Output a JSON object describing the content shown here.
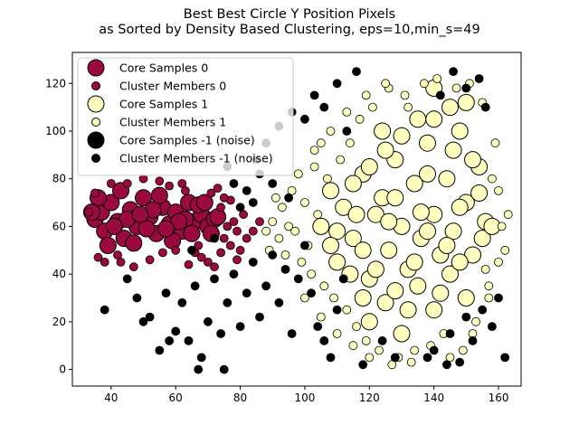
{
  "title_line1": "Best Best Circle Y Position Pixels",
  "title_line2": "as Sorted by Density Based Clustering, eps=10,min_s=49",
  "chart_data": {
    "type": "scatter",
    "title": "Best Best Circle Y Position Pixels as Sorted by Density Based Clustering, eps=10,min_s=49",
    "xlabel": "",
    "ylabel": "",
    "xlim": [
      28,
      167
    ],
    "ylim": [
      -7,
      133
    ],
    "xticks": [
      40,
      60,
      80,
      100,
      120,
      140,
      160
    ],
    "yticks": [
      0,
      20,
      40,
      60,
      80,
      100,
      120
    ],
    "grid": false,
    "legend_position": "top-left",
    "legend": [
      {
        "label": "Core Samples 0",
        "color": "#9b0a3f",
        "marker": "large-circle"
      },
      {
        "label": "Cluster Members 0",
        "color": "#9b0a3f",
        "marker": "small-circle"
      },
      {
        "label": "Core Samples 1",
        "color": "#ffffc0",
        "marker": "large-circle"
      },
      {
        "label": "Cluster Members 1",
        "color": "#ffffc0",
        "marker": "small-circle"
      },
      {
        "label": "Core Samples -1 (noise)",
        "color": "#000000",
        "marker": "large-circle"
      },
      {
        "label": "Cluster Members -1 (noise)",
        "color": "#000000",
        "marker": "small-circle"
      }
    ],
    "series": [
      {
        "name": "Core Samples 0",
        "color": "#9b0a3f",
        "size": "large",
        "points": [
          [
            35,
            63
          ],
          [
            37,
            66
          ],
          [
            38,
            58
          ],
          [
            40,
            70
          ],
          [
            42,
            62
          ],
          [
            44,
            55
          ],
          [
            46,
            67
          ],
          [
            48,
            60
          ],
          [
            50,
            72
          ],
          [
            52,
            64
          ],
          [
            54,
            57
          ],
          [
            56,
            68
          ],
          [
            58,
            61
          ],
          [
            60,
            66
          ],
          [
            62,
            58
          ],
          [
            64,
            70
          ],
          [
            66,
            62
          ],
          [
            68,
            65
          ],
          [
            70,
            60
          ],
          [
            72,
            63
          ],
          [
            36,
            72
          ],
          [
            39,
            52
          ],
          [
            43,
            75
          ],
          [
            47,
            53
          ],
          [
            51,
            59
          ],
          [
            55,
            73
          ],
          [
            59,
            54
          ],
          [
            63,
            63
          ],
          [
            67,
            69
          ],
          [
            71,
            57
          ],
          [
            45,
            63
          ],
          [
            53,
            67
          ],
          [
            61,
            62
          ],
          [
            57,
            59
          ],
          [
            49,
            65
          ],
          [
            41,
            60
          ],
          [
            65,
            57
          ],
          [
            69,
            70
          ],
          [
            73,
            64
          ],
          [
            34,
            66
          ]
        ]
      },
      {
        "name": "Cluster Members 0",
        "color": "#9b0a3f",
        "size": "small",
        "points": [
          [
            33,
            66
          ],
          [
            35,
            74
          ],
          [
            36,
            47
          ],
          [
            38,
            45
          ],
          [
            42,
            48
          ],
          [
            45,
            78
          ],
          [
            50,
            80
          ],
          [
            55,
            79
          ],
          [
            62,
            78
          ],
          [
            66,
            49
          ],
          [
            70,
            45
          ],
          [
            72,
            43
          ],
          [
            74,
            68
          ],
          [
            75,
            55
          ],
          [
            76,
            60
          ],
          [
            77,
            52
          ],
          [
            78,
            62
          ],
          [
            79,
            58
          ],
          [
            80,
            50
          ],
          [
            81,
            65
          ],
          [
            60,
            50
          ],
          [
            58,
            77
          ],
          [
            52,
            46
          ],
          [
            47,
            43
          ],
          [
            40,
            78
          ],
          [
            64,
            44
          ],
          [
            68,
            47
          ],
          [
            74,
            49
          ],
          [
            77,
            71
          ],
          [
            82,
            55
          ],
          [
            84,
            58
          ],
          [
            86,
            62
          ],
          [
            79,
            46
          ],
          [
            73,
            76
          ],
          [
            43,
            45
          ],
          [
            56,
            49
          ],
          [
            63,
            75
          ],
          [
            67,
            52
          ],
          [
            71,
            74
          ],
          [
            75,
            72
          ]
        ]
      },
      {
        "name": "Core Samples 1",
        "color": "#ffffc0",
        "size": "large",
        "points": [
          [
            105,
            60
          ],
          [
            108,
            75
          ],
          [
            110,
            45
          ],
          [
            112,
            68
          ],
          [
            115,
            55
          ],
          [
            118,
            82
          ],
          [
            120,
            38
          ],
          [
            122,
            65
          ],
          [
            124,
            72
          ],
          [
            126,
            50
          ],
          [
            128,
            88
          ],
          [
            130,
            60
          ],
          [
            132,
            42
          ],
          [
            134,
            78
          ],
          [
            136,
            55
          ],
          [
            138,
            95
          ],
          [
            140,
            65
          ],
          [
            142,
            32
          ],
          [
            144,
            80
          ],
          [
            146,
            58
          ],
          [
            148,
            100
          ],
          [
            150,
            70
          ],
          [
            152,
            48
          ],
          [
            154,
            85
          ],
          [
            156,
            62
          ],
          [
            120,
            20
          ],
          [
            125,
            28
          ],
          [
            130,
            15
          ],
          [
            135,
            35
          ],
          [
            140,
            25
          ],
          [
            145,
            40
          ],
          [
            150,
            30
          ],
          [
            155,
            55
          ],
          [
            145,
            110
          ],
          [
            140,
            118
          ],
          [
            135,
            105
          ],
          [
            130,
            98
          ],
          [
            125,
            92
          ],
          [
            120,
            85
          ],
          [
            115,
            78
          ],
          [
            110,
            58
          ],
          [
            118,
            50
          ],
          [
            128,
            72
          ],
          [
            138,
            82
          ],
          [
            148,
            68
          ],
          [
            132,
            25
          ],
          [
            142,
            48
          ],
          [
            152,
            88
          ],
          [
            122,
            42
          ],
          [
            136,
            66
          ],
          [
            146,
            92
          ],
          [
            126,
            62
          ],
          [
            116,
            65
          ],
          [
            134,
            45
          ],
          [
            144,
            52
          ],
          [
            124,
            100
          ],
          [
            154,
            74
          ],
          [
            108,
            52
          ],
          [
            114,
            40
          ],
          [
            140,
            105
          ],
          [
            150,
            112
          ],
          [
            128,
            33
          ],
          [
            118,
            30
          ],
          [
            138,
            58
          ],
          [
            148,
            45
          ],
          [
            158,
            60
          ]
        ]
      },
      {
        "name": "Cluster Members 1",
        "color": "#ffffc0",
        "size": "small",
        "points": [
          [
            95,
            60
          ],
          [
            96,
            75
          ],
          [
            98,
            82
          ],
          [
            99,
            45
          ],
          [
            100,
            70
          ],
          [
            101,
            52
          ],
          [
            102,
            40
          ],
          [
            103,
            85
          ],
          [
            104,
            65
          ],
          [
            106,
            35
          ],
          [
            107,
            80
          ],
          [
            109,
            30
          ],
          [
            111,
            88
          ],
          [
            113,
            25
          ],
          [
            114,
            95
          ],
          [
            116,
            18
          ],
          [
            117,
            105
          ],
          [
            119,
            12
          ],
          [
            121,
            110
          ],
          [
            123,
            8
          ],
          [
            126,
            118
          ],
          [
            129,
            5
          ],
          [
            131,
            115
          ],
          [
            133,
            3
          ],
          [
            137,
            120
          ],
          [
            139,
            10
          ],
          [
            141,
            122
          ],
          [
            143,
            15
          ],
          [
            147,
            118
          ],
          [
            149,
            8
          ],
          [
            151,
            120
          ],
          [
            153,
            20
          ],
          [
            155,
            112
          ],
          [
            157,
            35
          ],
          [
            159,
            95
          ],
          [
            160,
            75
          ],
          [
            161,
            60
          ],
          [
            162,
            50
          ],
          [
            163,
            65
          ],
          [
            158,
            80
          ],
          [
            156,
            42
          ],
          [
            90,
            62
          ],
          [
            92,
            55
          ],
          [
            93,
            68
          ],
          [
            94,
            48
          ],
          [
            97,
            58
          ],
          [
            105,
            22
          ],
          [
            110,
            15
          ],
          [
            115,
            10
          ],
          [
            120,
            5
          ],
          [
            127,
            2
          ],
          [
            134,
            8
          ],
          [
            145,
            5
          ],
          [
            152,
            15
          ],
          [
            157,
            30
          ],
          [
            160,
            45
          ],
          [
            103,
            92
          ],
          [
            108,
            100
          ],
          [
            113,
            108
          ],
          [
            119,
            115
          ],
          [
            125,
            120
          ],
          [
            132,
            110
          ],
          [
            88,
            58
          ],
          [
            91,
            72
          ],
          [
            89,
            50
          ],
          [
            100,
            30
          ],
          [
            105,
            95
          ]
        ]
      },
      {
        "name": "Core Samples -1 (noise)",
        "color": "#000000",
        "size": "large",
        "points": []
      },
      {
        "name": "Cluster Members -1 (noise)",
        "color": "#000000",
        "size": "small",
        "points": [
          [
            38,
            25
          ],
          [
            45,
            38
          ],
          [
            48,
            30
          ],
          [
            52,
            22
          ],
          [
            55,
            8
          ],
          [
            57,
            32
          ],
          [
            60,
            16
          ],
          [
            62,
            28
          ],
          [
            64,
            12
          ],
          [
            66,
            35
          ],
          [
            68,
            5
          ],
          [
            70,
            20
          ],
          [
            72,
            38
          ],
          [
            74,
            15
          ],
          [
            76,
            28
          ],
          [
            78,
            40
          ],
          [
            80,
            18
          ],
          [
            82,
            32
          ],
          [
            84,
            45
          ],
          [
            86,
            22
          ],
          [
            88,
            35
          ],
          [
            90,
            48
          ],
          [
            92,
            28
          ],
          [
            94,
            42
          ],
          [
            96,
            15
          ],
          [
            98,
            38
          ],
          [
            100,
            52
          ],
          [
            102,
            32
          ],
          [
            104,
            18
          ],
          [
            106,
            12
          ],
          [
            108,
            5
          ],
          [
            110,
            25
          ],
          [
            112,
            38
          ],
          [
            85,
            88
          ],
          [
            88,
            95
          ],
          [
            92,
            102
          ],
          [
            96,
            108
          ],
          [
            100,
            105
          ],
          [
            103,
            115
          ],
          [
            106,
            110
          ],
          [
            110,
            120
          ],
          [
            113,
            100
          ],
          [
            116,
            125
          ],
          [
            95,
            72
          ],
          [
            90,
            78
          ],
          [
            86,
            82
          ],
          [
            80,
            68
          ],
          [
            82,
            75
          ],
          [
            84,
            70
          ],
          [
            78,
            78
          ],
          [
            76,
            85
          ],
          [
            140,
            8
          ],
          [
            145,
            15
          ],
          [
            148,
            3
          ],
          [
            150,
            22
          ],
          [
            152,
            12
          ],
          [
            155,
            25
          ],
          [
            158,
            18
          ],
          [
            160,
            30
          ],
          [
            162,
            5
          ],
          [
            142,
            115
          ],
          [
            146,
            125
          ],
          [
            150,
            118
          ],
          [
            154,
            122
          ],
          [
            156,
            110
          ],
          [
            144,
            2
          ],
          [
            138,
            5
          ],
          [
            128,
            5
          ],
          [
            124,
            12
          ],
          [
            118,
            2
          ],
          [
            65,
            50
          ],
          [
            72,
            55
          ],
          [
            58,
            12
          ],
          [
            50,
            20
          ],
          [
            67,
            0
          ],
          [
            75,
            0
          ]
        ]
      }
    ]
  }
}
